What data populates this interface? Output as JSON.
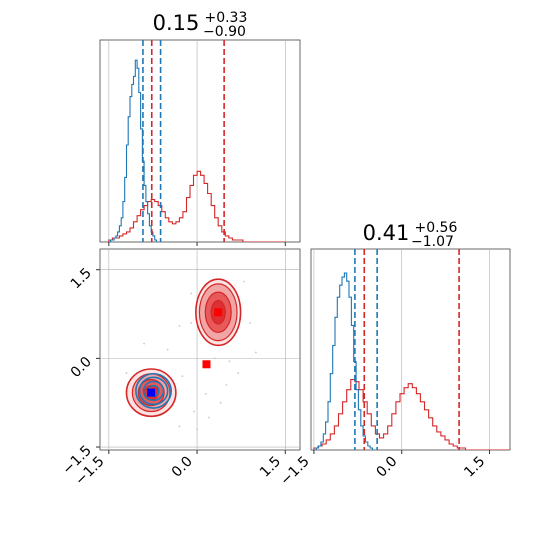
{
  "chart_data": {
    "type": "corner",
    "colors": {
      "red": "#d62728",
      "blue": "#1f77b4",
      "grid": "#b0b0b0",
      "scatter": "#c8c8c8"
    },
    "tick_labels": [
      "−1.5",
      "0.0",
      "1.5"
    ],
    "tick_values": [
      -1.5,
      0.0,
      1.5
    ],
    "panels": [
      {
        "kind": "histogram",
        "param_index": 0,
        "title": {
          "median": "0.15",
          "plus": "+0.33",
          "minus": "−0.90"
        },
        "xlim": [
          -1.65,
          1.75
        ],
        "ylim": [
          0,
          1.0
        ],
        "series": [
          {
            "name": "",
            "color": "red",
            "bin_start": -1.5,
            "bin_width": 0.06,
            "values": [
              0.01,
              0.02,
              0.02,
              0.03,
              0.04,
              0.05,
              0.07,
              0.1,
              0.13,
              0.16,
              0.18,
              0.2,
              0.21,
              0.2,
              0.18,
              0.15,
              0.12,
              0.1,
              0.09,
              0.1,
              0.12,
              0.15,
              0.22,
              0.28,
              0.33,
              0.35,
              0.33,
              0.29,
              0.24,
              0.18,
              0.12,
              0.08,
              0.05,
              0.03,
              0.02,
              0.01,
              0.01,
              0.01,
              0.0,
              0.0,
              0.0,
              0.0,
              0.0,
              0.0,
              0.0,
              0.0,
              0.0,
              0.0,
              0.0,
              0.0
            ]
          },
          {
            "name": "",
            "color": "blue",
            "bin_start": -1.5,
            "bin_width": 0.03,
            "values": [
              0.0,
              0.01,
              0.01,
              0.02,
              0.03,
              0.05,
              0.08,
              0.12,
              0.2,
              0.32,
              0.48,
              0.62,
              0.72,
              0.78,
              0.82,
              0.9,
              0.86,
              0.74,
              0.56,
              0.4,
              0.28,
              0.2,
              0.14,
              0.08,
              0.05,
              0.03,
              0.01,
              0.0
            ]
          }
        ],
        "markers": [
          {
            "color": "blue",
            "x": -0.92
          },
          {
            "color": "blue",
            "x": -0.62
          },
          {
            "color": "red",
            "x": -0.77
          },
          {
            "color": "red",
            "x": 0.46
          }
        ]
      },
      {
        "kind": "histogram",
        "param_index": 1,
        "title": {
          "median": "0.41",
          "plus": "+0.56",
          "minus": "−1.07"
        },
        "xlim": [
          -1.55,
          1.85
        ],
        "ylim": [
          0,
          1.0
        ],
        "series": [
          {
            "name": "",
            "color": "red",
            "bin_start": -1.5,
            "bin_width": 0.07,
            "values": [
              0.01,
              0.02,
              0.03,
              0.05,
              0.08,
              0.12,
              0.18,
              0.24,
              0.3,
              0.35,
              0.34,
              0.3,
              0.24,
              0.18,
              0.12,
              0.08,
              0.06,
              0.08,
              0.12,
              0.18,
              0.24,
              0.28,
              0.31,
              0.33,
              0.31,
              0.28,
              0.24,
              0.2,
              0.16,
              0.12,
              0.09,
              0.07,
              0.05,
              0.03,
              0.02,
              0.01,
              0.01,
              0.0,
              0.0,
              0.0,
              0.0,
              0.0,
              0.0,
              0.0,
              0.0,
              0.0,
              0.0,
              0.0,
              0.0,
              0.0
            ]
          },
          {
            "name": "",
            "color": "blue",
            "bin_start": -1.5,
            "bin_width": 0.04,
            "values": [
              0.0,
              0.01,
              0.02,
              0.04,
              0.08,
              0.14,
              0.24,
              0.38,
              0.52,
              0.66,
              0.76,
              0.82,
              0.86,
              0.88,
              0.84,
              0.76,
              0.62,
              0.44,
              0.3,
              0.2,
              0.12,
              0.07,
              0.04,
              0.02,
              0.01,
              0.0
            ]
          }
        ],
        "markers": [
          {
            "color": "blue",
            "x": -0.8
          },
          {
            "color": "blue",
            "x": -0.42
          },
          {
            "color": "red",
            "x": -0.64
          },
          {
            "color": "red",
            "x": 0.98
          }
        ]
      },
      {
        "kind": "2d",
        "xlim": [
          -1.65,
          1.75
        ],
        "ylim": [
          -1.55,
          1.85
        ],
        "red_clusters": [
          {
            "cx": 0.36,
            "cy": 0.78,
            "rx": [
              0.12,
              0.22,
              0.32,
              0.38
            ],
            "ry": [
              0.2,
              0.34,
              0.48,
              0.56
            ]
          },
          {
            "cx": -0.78,
            "cy": -0.58,
            "rx": [
              0.12,
              0.22,
              0.32,
              0.42
            ],
            "ry": [
              0.12,
              0.22,
              0.32,
              0.4
            ]
          }
        ],
        "blue_cluster": {
          "cx": -0.74,
          "cy": -0.55,
          "rx": [
            0.09,
            0.17,
            0.24,
            0.3
          ],
          "ry": [
            0.09,
            0.16,
            0.23,
            0.29
          ]
        },
        "markers": [
          {
            "color": "red",
            "x": 0.36,
            "y": 0.78
          },
          {
            "color": "red",
            "x": 0.16,
            "y": -0.1
          },
          {
            "color": "blue",
            "x": -0.78,
            "y": -0.58
          }
        ],
        "scatter_points": [
          [
            -0.3,
            0.55
          ],
          [
            -0.5,
            0.15
          ],
          [
            -0.1,
            0.6
          ],
          [
            0.9,
            0.6
          ],
          [
            1.0,
            0.1
          ],
          [
            0.7,
            -0.25
          ],
          [
            0.5,
            -0.45
          ],
          [
            -0.05,
            -0.9
          ],
          [
            0.15,
            -0.6
          ],
          [
            0.4,
            -0.75
          ],
          [
            -0.3,
            -1.15
          ],
          [
            0.0,
            -1.2
          ],
          [
            0.55,
            -0.05
          ],
          [
            -0.9,
            0.25
          ],
          [
            -1.2,
            -0.25
          ],
          [
            0.8,
            1.3
          ],
          [
            -0.1,
            1.1
          ],
          [
            0.3,
            0.0
          ],
          [
            -0.25,
            -0.3
          ],
          [
            0.2,
            -1.0
          ]
        ]
      }
    ]
  }
}
